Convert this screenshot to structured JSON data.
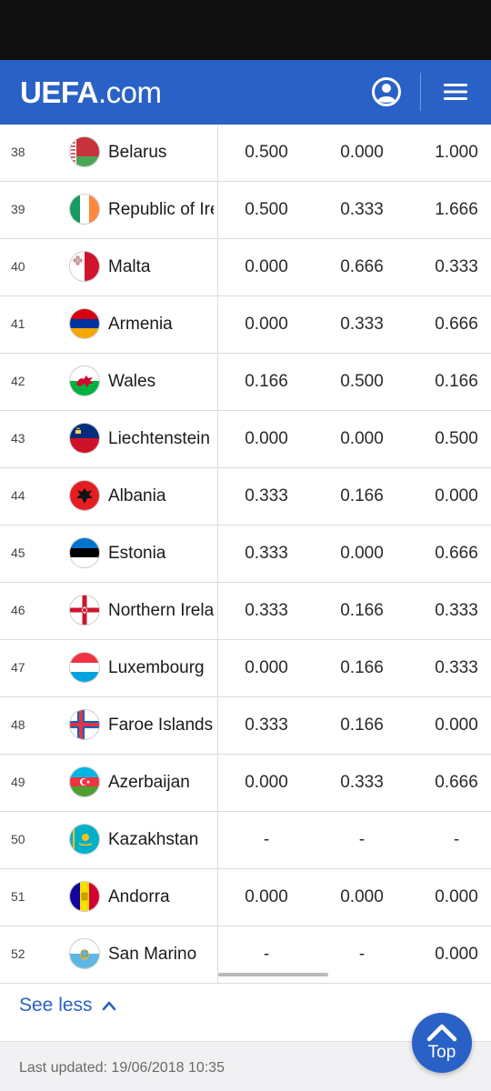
{
  "header": {
    "logo_bold": "UEFA",
    "logo_rest": ".com",
    "user_icon": "user-account-icon",
    "menu_icon": "hamburger-menu-icon",
    "accent_color": "#2a61c6"
  },
  "rows": [
    {
      "rank": "38",
      "country": "Belarus",
      "flag_icon": "belarus-flag-icon",
      "v1": "0.500",
      "v2": "0.000",
      "v3": "1.000"
    },
    {
      "rank": "39",
      "country": "Republic of Ireland",
      "flag_icon": "ireland-flag-icon",
      "v1": "0.500",
      "v2": "0.333",
      "v3": "1.666"
    },
    {
      "rank": "40",
      "country": "Malta",
      "flag_icon": "malta-flag-icon",
      "v1": "0.000",
      "v2": "0.666",
      "v3": "0.333"
    },
    {
      "rank": "41",
      "country": "Armenia",
      "flag_icon": "armenia-flag-icon",
      "v1": "0.000",
      "v2": "0.333",
      "v3": "0.666"
    },
    {
      "rank": "42",
      "country": "Wales",
      "flag_icon": "wales-flag-icon",
      "v1": "0.166",
      "v2": "0.500",
      "v3": "0.166"
    },
    {
      "rank": "43",
      "country": "Liechtenstein",
      "flag_icon": "liechtenstein-flag-icon",
      "v1": "0.000",
      "v2": "0.000",
      "v3": "0.500"
    },
    {
      "rank": "44",
      "country": "Albania",
      "flag_icon": "albania-flag-icon",
      "v1": "0.333",
      "v2": "0.166",
      "v3": "0.000"
    },
    {
      "rank": "45",
      "country": "Estonia",
      "flag_icon": "estonia-flag-icon",
      "v1": "0.333",
      "v2": "0.000",
      "v3": "0.666"
    },
    {
      "rank": "46",
      "country": "Northern Ireland",
      "flag_icon": "northern-ireland-flag-icon",
      "v1": "0.333",
      "v2": "0.166",
      "v3": "0.333"
    },
    {
      "rank": "47",
      "country": "Luxembourg",
      "flag_icon": "luxembourg-flag-icon",
      "v1": "0.000",
      "v2": "0.166",
      "v3": "0.333"
    },
    {
      "rank": "48",
      "country": "Faroe Islands",
      "flag_icon": "faroe-islands-flag-icon",
      "v1": "0.333",
      "v2": "0.166",
      "v3": "0.000"
    },
    {
      "rank": "49",
      "country": "Azerbaijan",
      "flag_icon": "azerbaijan-flag-icon",
      "v1": "0.000",
      "v2": "0.333",
      "v3": "0.666"
    },
    {
      "rank": "50",
      "country": "Kazakhstan",
      "flag_icon": "kazakhstan-flag-icon",
      "v1": "-",
      "v2": "-",
      "v3": "-"
    },
    {
      "rank": "51",
      "country": "Andorra",
      "flag_icon": "andorra-flag-icon",
      "v1": "0.000",
      "v2": "0.000",
      "v3": "0.000"
    },
    {
      "rank": "52",
      "country": "San Marino",
      "flag_icon": "san-marino-flag-icon",
      "v1": "-",
      "v2": "-",
      "v3": "0.000"
    }
  ],
  "see_less": {
    "label": "See less",
    "icon": "chevron-up-icon"
  },
  "footer": {
    "last_updated": "Last updated: 19/06/2018 10:35"
  },
  "top_button": {
    "label": "Top",
    "icon": "chevron-up-icon"
  }
}
